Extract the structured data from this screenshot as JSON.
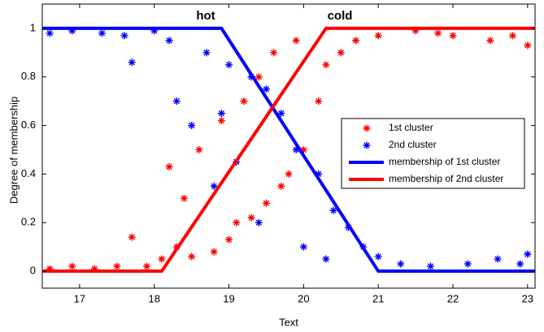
{
  "chart_data": {
    "type": "scatter",
    "xlabel": "Text",
    "ylabel": "Degree of membership",
    "annotations": [
      "hot",
      "cold"
    ],
    "xlim": [
      16.5,
      23.1
    ],
    "ylim": [
      -0.07,
      1.1
    ],
    "xticks": [
      17,
      18,
      19,
      20,
      21,
      22,
      23
    ],
    "yticks": [
      0,
      0.2,
      0.4,
      0.6,
      0.8,
      1
    ],
    "legend": "center right",
    "series": [
      {
        "name": "1st cluster",
        "color": "#ff0000",
        "mode": "markers",
        "x": [
          16.6,
          16.9,
          17.2,
          17.5,
          17.7,
          17.9,
          18.1,
          18.2,
          18.3,
          18.4,
          18.5,
          18.6,
          18.8,
          18.9,
          19.0,
          19.1,
          19.2,
          19.3,
          19.4,
          19.5,
          19.6,
          19.7,
          19.8,
          19.9,
          20.0,
          20.2,
          20.3,
          20.5,
          20.7,
          21.0,
          21.5,
          21.8,
          22.0,
          22.5,
          22.8,
          23.0
        ],
        "values": [
          0.01,
          0.02,
          0.01,
          0.02,
          0.14,
          0.02,
          0.05,
          0.43,
          0.1,
          0.3,
          0.06,
          0.5,
          0.08,
          0.62,
          0.13,
          0.2,
          0.7,
          0.22,
          0.8,
          0.28,
          0.9,
          0.35,
          0.4,
          0.95,
          0.5,
          0.7,
          0.85,
          0.9,
          0.95,
          0.97,
          0.99,
          0.98,
          0.97,
          0.95,
          0.97,
          0.93
        ]
      },
      {
        "name": "2nd cluster",
        "color": "#0000ff",
        "mode": "markers",
        "x": [
          16.6,
          16.9,
          17.3,
          17.6,
          17.7,
          18.0,
          18.2,
          18.3,
          18.5,
          18.7,
          18.8,
          18.9,
          19.0,
          19.1,
          19.3,
          19.4,
          19.5,
          19.7,
          19.9,
          20.0,
          20.2,
          20.3,
          20.4,
          20.6,
          20.8,
          21.0,
          21.3,
          21.7,
          22.2,
          22.6,
          22.9,
          23.0
        ],
        "values": [
          0.98,
          0.99,
          0.98,
          0.97,
          0.86,
          0.99,
          0.95,
          0.7,
          0.6,
          0.9,
          0.35,
          0.65,
          0.85,
          0.45,
          0.8,
          0.2,
          0.75,
          0.65,
          0.5,
          0.1,
          0.4,
          0.05,
          0.25,
          0.18,
          0.1,
          0.06,
          0.03,
          0.02,
          0.03,
          0.05,
          0.03,
          0.07
        ]
      },
      {
        "name": "membership of 1st cluster",
        "color": "#0000ff",
        "mode": "line",
        "x": [
          16.5,
          18.9,
          21.0,
          23.1
        ],
        "values": [
          1,
          1,
          0,
          0
        ]
      },
      {
        "name": "membership of 2nd cluster",
        "color": "#ff0000",
        "mode": "line",
        "x": [
          16.5,
          18.1,
          20.3,
          23.1
        ],
        "values": [
          0,
          0,
          1,
          1
        ]
      }
    ]
  }
}
